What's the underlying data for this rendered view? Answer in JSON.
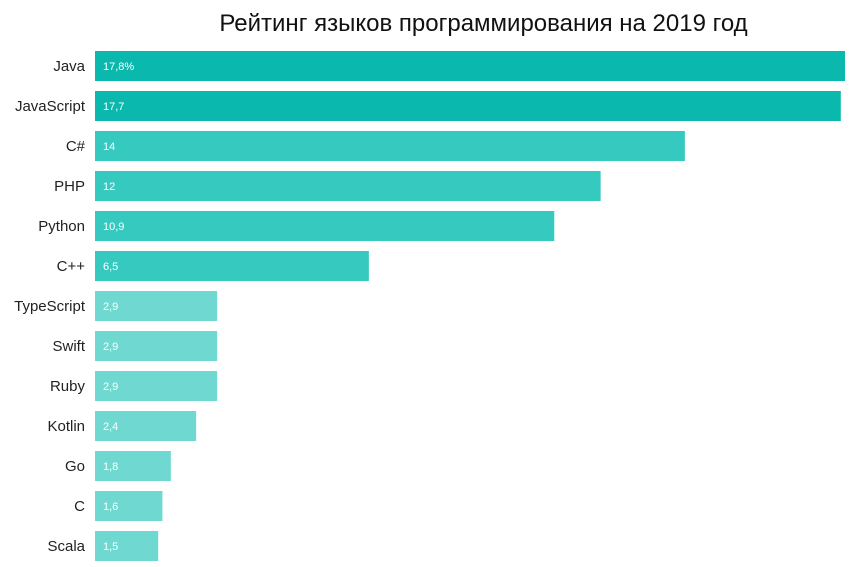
{
  "chart_data": {
    "type": "bar",
    "orientation": "horizontal",
    "title": "Рейтинг языков программирования на 2019 год",
    "categories": [
      "Java",
      "JavaScript",
      "C#",
      "PHP",
      "Python",
      "C++",
      "TypeScript",
      "Swift",
      "Ruby",
      "Kotlin",
      "Go",
      "C",
      "Scala"
    ],
    "values": [
      17.8,
      17.7,
      14,
      12,
      10.9,
      6.5,
      2.9,
      2.9,
      2.9,
      2.4,
      1.8,
      1.6,
      1.5
    ],
    "value_labels": [
      "17,8%",
      "17,7",
      "14",
      "12",
      "10,9",
      "6,5",
      "2,9",
      "2,9",
      "2,9",
      "2,4",
      "1,8",
      "1,6",
      "1,5"
    ],
    "bar_colors": [
      "#0bb8ad",
      "#0bb8ad",
      "#36c9c0",
      "#36c9c0",
      "#36c9c0",
      "#36c9c0",
      "#6fd8d1",
      "#6fd8d1",
      "#6fd8d1",
      "#6fd8d1",
      "#6fd8d1",
      "#6fd8d1",
      "#6fd8d1"
    ],
    "xlabel": "",
    "ylabel": "",
    "xlim": [
      0,
      17.8
    ]
  }
}
